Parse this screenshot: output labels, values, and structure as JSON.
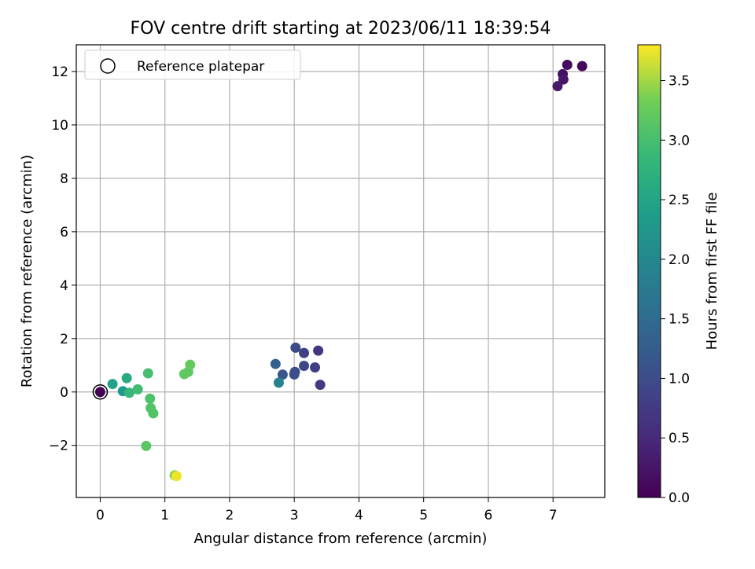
{
  "chart_data": {
    "type": "scatter",
    "title": "FOV centre drift starting at 2023/06/11 18:39:54",
    "xlabel": "Angular distance from reference (arcmin)",
    "ylabel": "Rotation from reference (arcmin)",
    "xlim": [
      -0.37,
      7.8
    ],
    "ylim": [
      -3.95,
      13.0
    ],
    "xticks": [
      0,
      1,
      2,
      3,
      4,
      5,
      6,
      7
    ],
    "yticks": [
      -2,
      0,
      2,
      4,
      6,
      8,
      10,
      12
    ],
    "xtick_labels": [
      "0",
      "1",
      "2",
      "3",
      "4",
      "5",
      "6",
      "7"
    ],
    "ytick_labels": [
      "−2",
      "0",
      "2",
      "4",
      "6",
      "8",
      "10",
      "12"
    ],
    "grid": true,
    "legend": {
      "position": "top-left",
      "entries": [
        "Reference platepar"
      ]
    },
    "colorbar": {
      "label": "Hours from first FF file",
      "colormap": "viridis",
      "range": [
        0.0,
        3.8
      ],
      "ticks": [
        0.0,
        0.5,
        1.0,
        1.5,
        2.0,
        2.5,
        3.0,
        3.5
      ],
      "tick_labels": [
        "0.0",
        "0.5",
        "1.0",
        "1.5",
        "2.0",
        "2.5",
        "3.0",
        "3.5"
      ]
    },
    "reference_point": {
      "x": 0,
      "y": 0,
      "c": 0.0
    },
    "points": [
      {
        "x": 7.45,
        "y": 12.2,
        "c": 0.1
      },
      {
        "x": 7.22,
        "y": 12.25,
        "c": 0.15
      },
      {
        "x": 7.15,
        "y": 11.9,
        "c": 0.2
      },
      {
        "x": 7.16,
        "y": 11.7,
        "c": 0.25
      },
      {
        "x": 7.07,
        "y": 11.45,
        "c": 0.3
      },
      {
        "x": 3.37,
        "y": 1.55,
        "c": 0.7
      },
      {
        "x": 3.4,
        "y": 0.27,
        "c": 0.75
      },
      {
        "x": 3.32,
        "y": 0.92,
        "c": 0.8
      },
      {
        "x": 3.15,
        "y": 1.46,
        "c": 0.85
      },
      {
        "x": 3.15,
        "y": 0.98,
        "c": 0.9
      },
      {
        "x": 3.02,
        "y": 1.66,
        "c": 0.95
      },
      {
        "x": 3.01,
        "y": 0.75,
        "c": 1.0
      },
      {
        "x": 3.0,
        "y": 0.66,
        "c": 1.05
      },
      {
        "x": 2.82,
        "y": 0.65,
        "c": 1.15
      },
      {
        "x": 2.71,
        "y": 1.05,
        "c": 1.3
      },
      {
        "x": 2.76,
        "y": 0.35,
        "c": 1.9
      },
      {
        "x": 0.35,
        "y": 0.03,
        "c": 2.3
      },
      {
        "x": 0.19,
        "y": 0.3,
        "c": 2.45
      },
      {
        "x": 0.41,
        "y": 0.52,
        "c": 2.6
      },
      {
        "x": 0.45,
        "y": -0.03,
        "c": 2.85
      },
      {
        "x": 0.58,
        "y": 0.1,
        "c": 2.95
      },
      {
        "x": 0.74,
        "y": 0.7,
        "c": 3.0
      },
      {
        "x": 0.77,
        "y": -0.25,
        "c": 3.05
      },
      {
        "x": 0.78,
        "y": -0.6,
        "c": 3.1
      },
      {
        "x": 0.82,
        "y": -0.8,
        "c": 3.1
      },
      {
        "x": 0.71,
        "y": -2.02,
        "c": 3.15
      },
      {
        "x": 1.3,
        "y": 0.67,
        "c": 3.2
      },
      {
        "x": 1.36,
        "y": 0.75,
        "c": 3.2
      },
      {
        "x": 1.39,
        "y": 1.02,
        "c": 3.25
      },
      {
        "x": 1.15,
        "y": -3.12,
        "c": 3.4
      },
      {
        "x": 1.18,
        "y": -3.15,
        "c": 3.75
      }
    ]
  }
}
